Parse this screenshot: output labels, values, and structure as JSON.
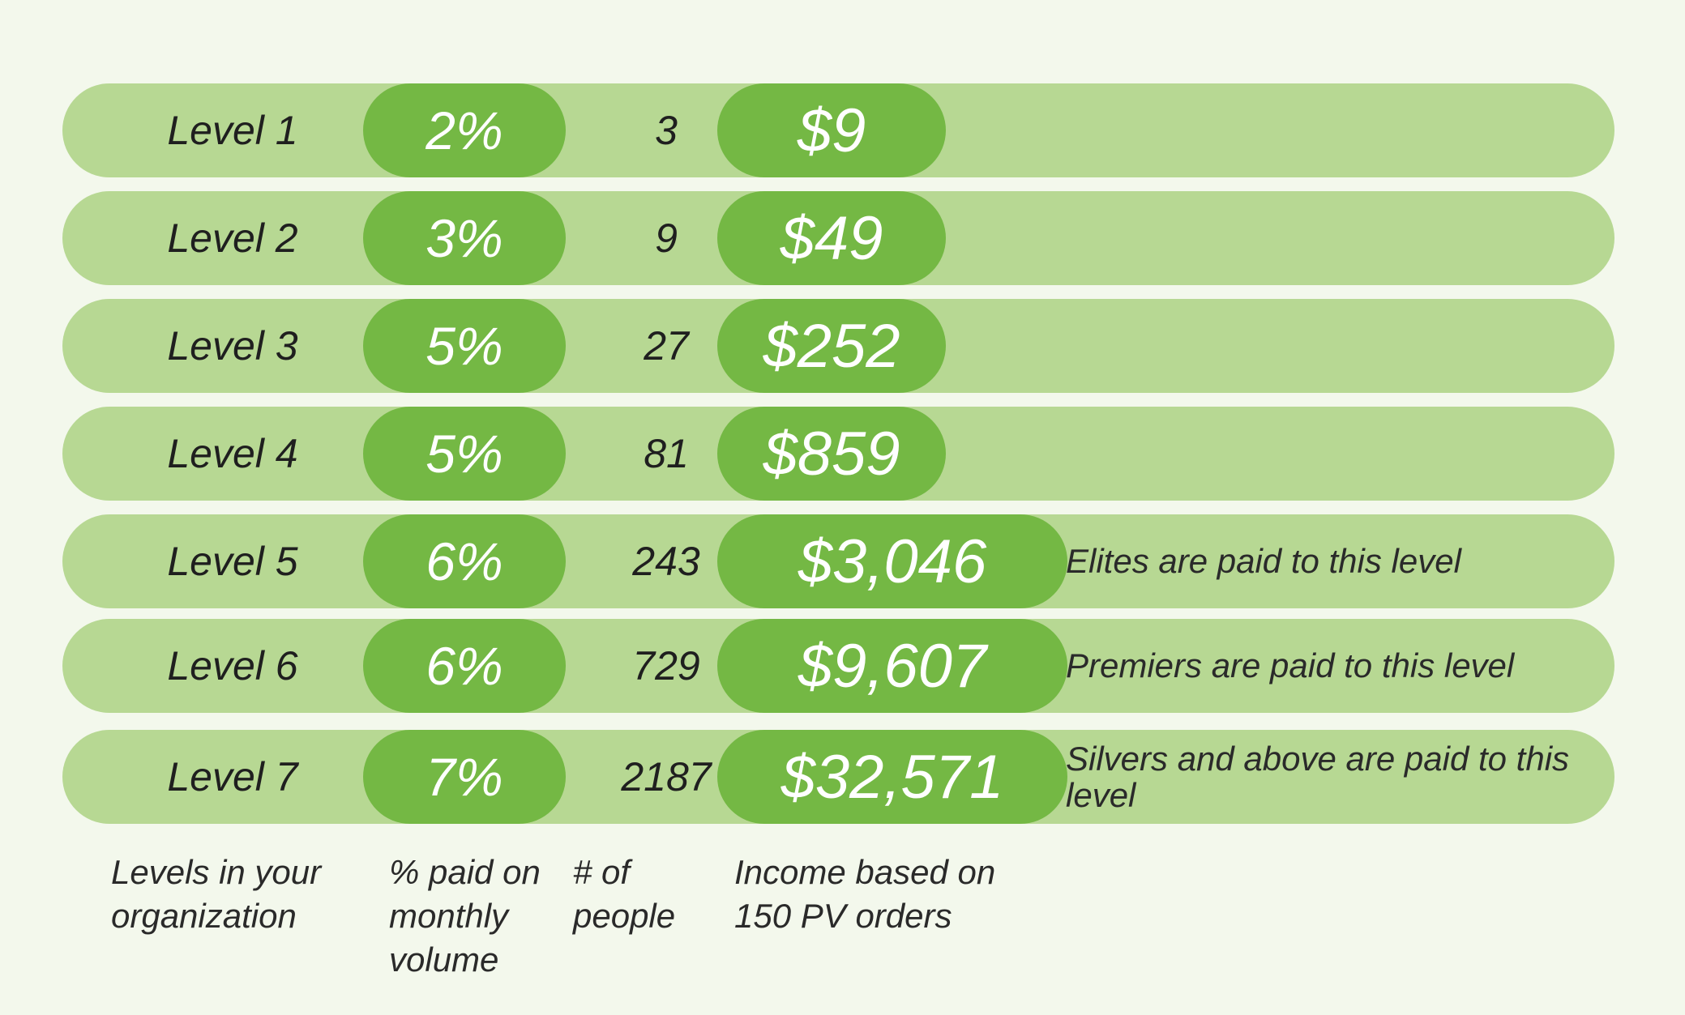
{
  "chart_data": {
    "type": "table",
    "columns": [
      "Levels in your organization",
      "% paid on monthly volume",
      "# of people",
      "Income based on 150 PV orders"
    ],
    "rows": [
      {
        "level": "Level 1",
        "percent": "2%",
        "people": "3",
        "income": "$9",
        "note": ""
      },
      {
        "level": "Level 2",
        "percent": "3%",
        "people": "9",
        "income": "$49",
        "note": ""
      },
      {
        "level": "Level 3",
        "percent": "5%",
        "people": "27",
        "income": "$252",
        "note": ""
      },
      {
        "level": "Level 4",
        "percent": "5%",
        "people": "81",
        "income": "$859",
        "note": ""
      },
      {
        "level": "Level 5",
        "percent": "6%",
        "people": "243",
        "income": "$3,046",
        "note": "Elites are paid to this level"
      },
      {
        "level": "Level 6",
        "percent": "6%",
        "people": "729",
        "income": "$9,607",
        "note": "Premiers are paid to this level"
      },
      {
        "level": "Level 7",
        "percent": "7%",
        "people": "2187",
        "income": "$32,571",
        "note": "Silvers and above are paid to this level"
      }
    ],
    "captions": {
      "levels": [
        "Levels in your",
        "organization"
      ],
      "percent": [
        "% paid on",
        "monthly",
        "volume"
      ],
      "people": [
        "# of",
        "people"
      ],
      "income": [
        "Income based on",
        "150 PV orders"
      ]
    }
  },
  "colors": {
    "background": "#f3f8ec",
    "row_bar": "#b7d893",
    "pill": "#74b844",
    "pill_text": "#ffffff",
    "text": "#222222"
  }
}
